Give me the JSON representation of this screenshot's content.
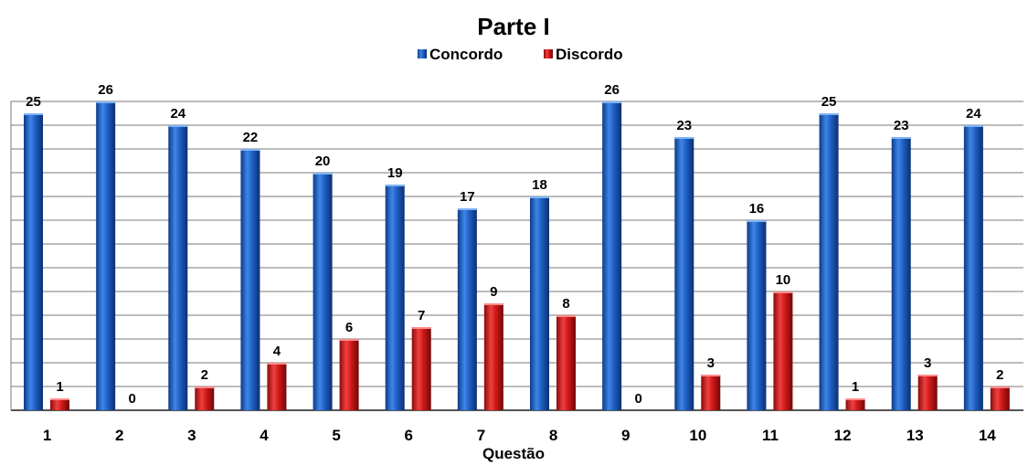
{
  "chart_data": {
    "type": "bar",
    "title": "Parte I",
    "xlabel": "Questão",
    "ylabel": "",
    "categories": [
      "1",
      "2",
      "3",
      "4",
      "5",
      "6",
      "7",
      "8",
      "9",
      "10",
      "11",
      "12",
      "13",
      "14"
    ],
    "series": [
      {
        "name": "Concordo",
        "color": "#1f5fc4",
        "values": [
          25,
          26,
          24,
          22,
          20,
          19,
          17,
          18,
          26,
          23,
          16,
          25,
          23,
          24
        ]
      },
      {
        "name": "Discordo",
        "color": "#d01818",
        "values": [
          1,
          0,
          2,
          4,
          6,
          7,
          9,
          8,
          0,
          3,
          10,
          1,
          3,
          2
        ]
      }
    ],
    "ylim": [
      0,
      26
    ],
    "grid": true,
    "legend_position": "top-center",
    "data_labels": true
  }
}
